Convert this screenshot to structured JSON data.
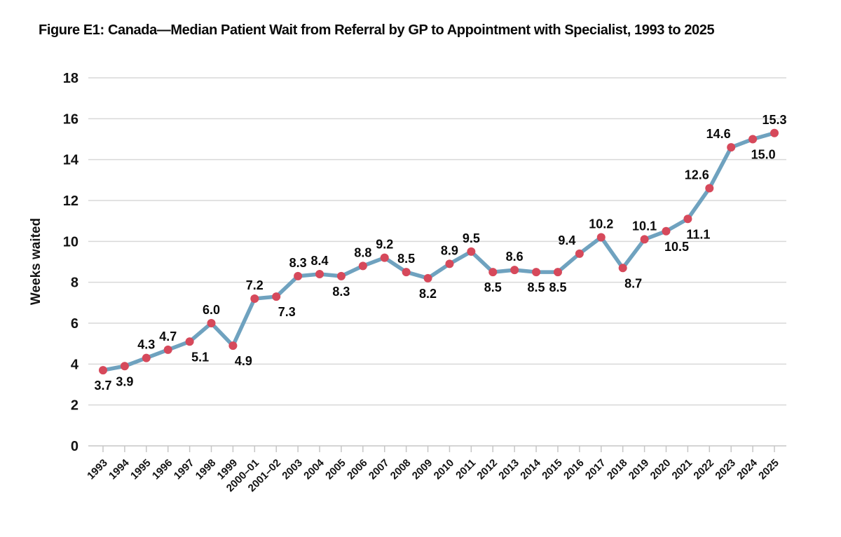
{
  "figure": {
    "title": "Figure E1: Canada—Median Patient Wait from Referral by GP to Appointment with Specialist, 1993 to 2025"
  },
  "chart_data": {
    "type": "line",
    "title": "Figure E1: Canada—Median Patient Wait from Referral by GP to Appointment with Specialist, 1993 to 2025",
    "xlabel": "",
    "ylabel": "Weeks waited",
    "ylim": [
      0,
      18
    ],
    "ytick_step": 2,
    "grid": "horizontal",
    "legend": "none",
    "data_labels": true,
    "line_color": "#6FA2BF",
    "marker_color": "#D6495B",
    "grid_color": "#D9D9D9",
    "axis_color": "#C6C6C6",
    "categories": [
      "1993",
      "1994",
      "1995",
      "1996",
      "1997",
      "1998",
      "1999",
      "2000–01",
      "2001–02",
      "2003",
      "2004",
      "2005",
      "2006",
      "2007",
      "2008",
      "2009",
      "2010",
      "2011",
      "2012",
      "2013",
      "2014",
      "2015",
      "2016",
      "2017",
      "2018",
      "2019",
      "2020",
      "2021",
      "2022",
      "2023",
      "2024",
      "2025"
    ],
    "values": [
      3.7,
      3.9,
      4.3,
      4.7,
      5.1,
      6.0,
      4.9,
      7.2,
      7.3,
      8.3,
      8.4,
      8.3,
      8.8,
      9.2,
      8.5,
      8.2,
      8.9,
      9.5,
      8.5,
      8.6,
      8.5,
      8.5,
      9.4,
      10.2,
      8.7,
      10.1,
      10.5,
      11.1,
      12.6,
      14.6,
      15.0,
      15.3
    ],
    "label_positions": [
      "below",
      "below",
      "above",
      "above",
      "below-right",
      "above",
      "below-right",
      "above",
      "below-right",
      "above",
      "above",
      "below",
      "above",
      "above",
      "above",
      "below",
      "above",
      "above",
      "below",
      "above",
      "below",
      "below",
      "above-left",
      "above",
      "below-right",
      "above",
      "below-right",
      "below-right",
      "above-left",
      "above-left",
      "below-right",
      "above"
    ]
  }
}
